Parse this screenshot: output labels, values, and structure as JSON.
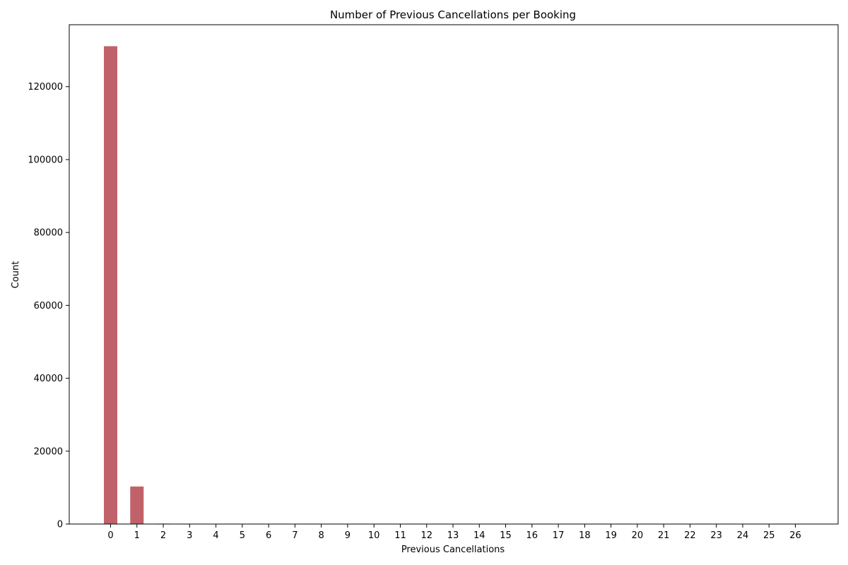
{
  "chart_data": {
    "type": "bar",
    "title": "Number of Previous Cancellations per Booking",
    "xlabel": "Previous Cancellations",
    "ylabel": "Count",
    "categories": [
      "0",
      "1",
      "2",
      "3",
      "4",
      "5",
      "6",
      "7",
      "8",
      "9",
      "10",
      "11",
      "12",
      "13",
      "14",
      "15",
      "16",
      "17",
      "18",
      "19",
      "20",
      "21",
      "22",
      "23",
      "24",
      "25",
      "26"
    ],
    "values": [
      131100,
      10300,
      120,
      100,
      30,
      20,
      20,
      10,
      10,
      10,
      10,
      30,
      10,
      10,
      10,
      30,
      10,
      10,
      10,
      20,
      10,
      10,
      10,
      10,
      50,
      30,
      30
    ],
    "ylim": [
      0,
      137000
    ],
    "yticks": [
      0,
      20000,
      40000,
      60000,
      80000,
      100000,
      120000
    ],
    "grid": false,
    "bar_color": "#c1626a"
  }
}
